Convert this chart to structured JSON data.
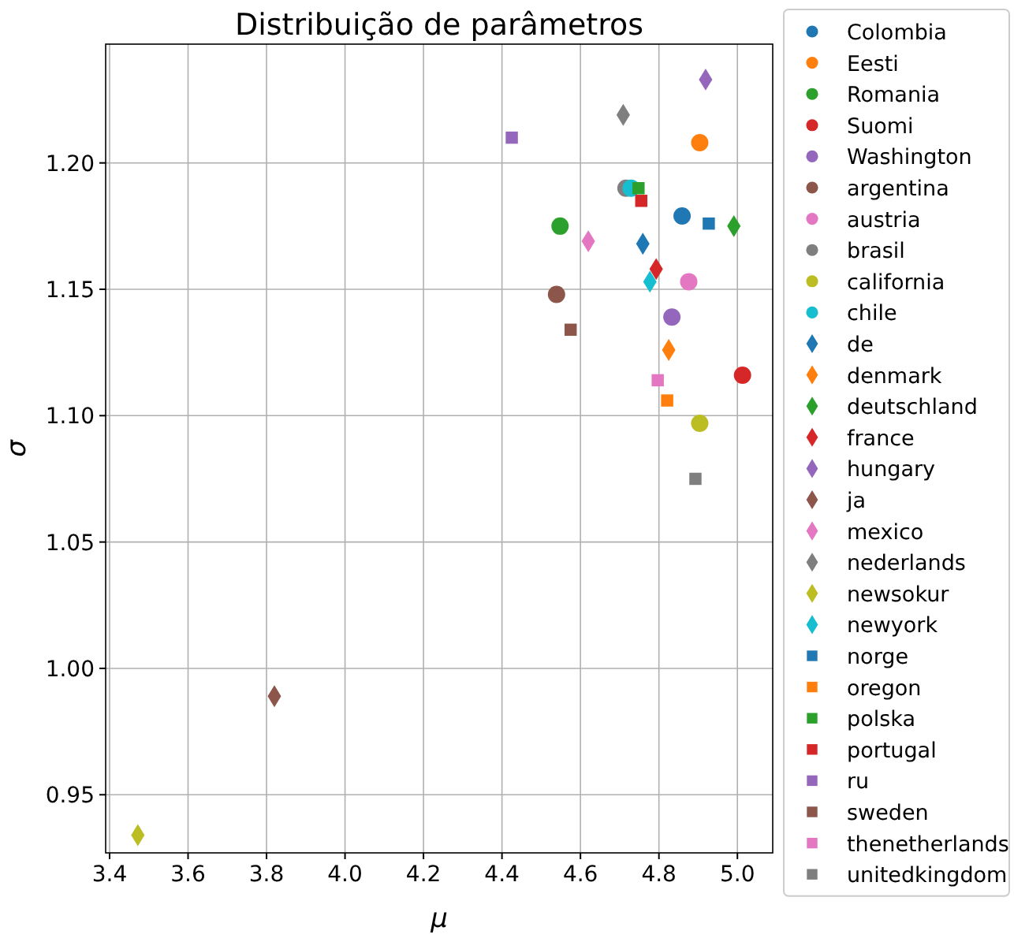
{
  "chart_data": {
    "type": "scatter",
    "title": "Distribuição de parâmetros",
    "xlabel": "μ",
    "ylabel": "σ",
    "xlim": [
      3.39,
      5.09
    ],
    "ylim": [
      0.927,
      1.247
    ],
    "xticks": [
      {
        "value": 3.4,
        "label": "3.4"
      },
      {
        "value": 3.6,
        "label": "3.6"
      },
      {
        "value": 3.8,
        "label": "3.8"
      },
      {
        "value": 4.0,
        "label": "4.0"
      },
      {
        "value": 4.2,
        "label": "4.2"
      },
      {
        "value": 4.4,
        "label": "4.4"
      },
      {
        "value": 4.6,
        "label": "4.6"
      },
      {
        "value": 4.8,
        "label": "4.8"
      },
      {
        "value": 5.0,
        "label": "5.0"
      }
    ],
    "yticks": [
      0.95,
      {
        "value": 1.0,
        "label": "1.00"
      },
      1.05,
      {
        "value": 1.1,
        "label": "1.10"
      },
      1.15,
      {
        "value": 1.2,
        "label": "1.20"
      }
    ],
    "grid": true,
    "legend": "right",
    "series": [
      {
        "name": "Colombia",
        "color": "#1f77b4",
        "marker": "circle",
        "x": [
          4.859
        ],
        "values": [
          1.179
        ]
      },
      {
        "name": "Eesti",
        "color": "#ff7f0e",
        "marker": "circle",
        "x": [
          4.904
        ],
        "values": [
          1.208
        ]
      },
      {
        "name": "Romania",
        "color": "#2ca02c",
        "marker": "circle",
        "x": [
          4.548
        ],
        "values": [
          1.175
        ]
      },
      {
        "name": "Suomi",
        "color": "#d62728",
        "marker": "circle",
        "x": [
          5.013
        ],
        "values": [
          1.116
        ]
      },
      {
        "name": "Washington",
        "color": "#9467bd",
        "marker": "circle",
        "x": [
          4.833
        ],
        "values": [
          1.139
        ]
      },
      {
        "name": "argentina",
        "color": "#8c564b",
        "marker": "circle",
        "x": [
          4.539
        ],
        "values": [
          1.148
        ]
      },
      {
        "name": "austria",
        "color": "#e377c2",
        "marker": "circle",
        "x": [
          4.876
        ],
        "values": [
          1.153
        ]
      },
      {
        "name": "brasil",
        "color": "#7f7f7f",
        "marker": "circle",
        "x": [
          4.716
        ],
        "values": [
          1.19
        ]
      },
      {
        "name": "california",
        "color": "#bcbd22",
        "marker": "circle",
        "x": [
          4.904
        ],
        "values": [
          1.097
        ]
      },
      {
        "name": "chile",
        "color": "#17becf",
        "marker": "circle",
        "x": [
          4.729
        ],
        "values": [
          1.19
        ]
      },
      {
        "name": "de",
        "color": "#1f77b4",
        "marker": "diamond",
        "x": [
          4.759
        ],
        "values": [
          1.168
        ]
      },
      {
        "name": "denmark",
        "color": "#ff7f0e",
        "marker": "diamond",
        "x": [
          4.825
        ],
        "values": [
          1.126
        ]
      },
      {
        "name": "deutschland",
        "color": "#2ca02c",
        "marker": "diamond",
        "x": [
          4.991
        ],
        "values": [
          1.175
        ]
      },
      {
        "name": "france",
        "color": "#d62728",
        "marker": "diamond",
        "x": [
          4.793
        ],
        "values": [
          1.158
        ]
      },
      {
        "name": "hungary",
        "color": "#9467bd",
        "marker": "diamond",
        "x": [
          4.919
        ],
        "values": [
          1.233
        ]
      },
      {
        "name": "ja",
        "color": "#8c564b",
        "marker": "diamond",
        "x": [
          3.82
        ],
        "values": [
          0.989
        ]
      },
      {
        "name": "mexico",
        "color": "#e377c2",
        "marker": "diamond",
        "x": [
          4.62
        ],
        "values": [
          1.169
        ]
      },
      {
        "name": "nederlands",
        "color": "#7f7f7f",
        "marker": "diamond",
        "x": [
          4.709
        ],
        "values": [
          1.219
        ]
      },
      {
        "name": "newsokur",
        "color": "#bcbd22",
        "marker": "diamond",
        "x": [
          3.472
        ],
        "values": [
          0.934
        ]
      },
      {
        "name": "newyork",
        "color": "#17becf",
        "marker": "diamond",
        "x": [
          4.777
        ],
        "values": [
          1.153
        ]
      },
      {
        "name": "norge",
        "color": "#1f77b4",
        "marker": "square",
        "x": [
          4.927
        ],
        "values": [
          1.176
        ]
      },
      {
        "name": "oregon",
        "color": "#ff7f0e",
        "marker": "square",
        "x": [
          4.821
        ],
        "values": [
          1.106
        ]
      },
      {
        "name": "polska",
        "color": "#2ca02c",
        "marker": "square",
        "x": [
          4.748
        ],
        "values": [
          1.19
        ]
      },
      {
        "name": "portugal",
        "color": "#d62728",
        "marker": "square",
        "x": [
          4.755
        ],
        "values": [
          1.185
        ]
      },
      {
        "name": "ru",
        "color": "#9467bd",
        "marker": "square",
        "x": [
          4.425
        ],
        "values": [
          1.21
        ]
      },
      {
        "name": "sweden",
        "color": "#8c564b",
        "marker": "square",
        "x": [
          4.575
        ],
        "values": [
          1.134
        ]
      },
      {
        "name": "thenetherlands",
        "color": "#e377c2",
        "marker": "square",
        "x": [
          4.797
        ],
        "values": [
          1.114
        ]
      },
      {
        "name": "unitedkingdom",
        "color": "#7f7f7f",
        "marker": "square",
        "x": [
          4.893
        ],
        "values": [
          1.075
        ]
      }
    ]
  }
}
